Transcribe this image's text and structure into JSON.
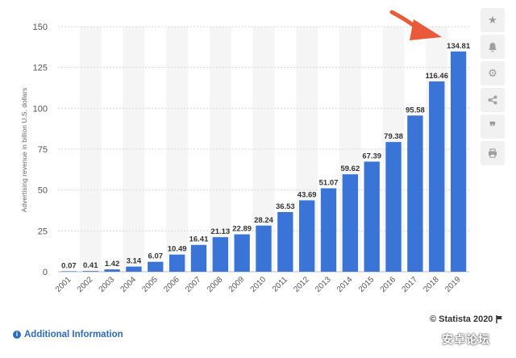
{
  "chart_data": {
    "type": "bar",
    "ylabel": "Advertising revenue in billion U.S. dollars",
    "categories": [
      "2001",
      "2002",
      "2003",
      "2004",
      "2005",
      "2006",
      "2007",
      "2008",
      "2009",
      "2010",
      "2011",
      "2012",
      "2013",
      "2014",
      "2015",
      "2016",
      "2017",
      "2018",
      "2019"
    ],
    "values": [
      0.07,
      0.41,
      1.42,
      3.14,
      6.07,
      10.49,
      16.41,
      21.13,
      22.89,
      28.24,
      36.53,
      43.69,
      51.07,
      59.62,
      67.39,
      79.38,
      95.58,
      116.46,
      134.81
    ],
    "value_labels": [
      "0.07",
      "0.41",
      "1.42",
      "3.14",
      "6.07",
      "10.49",
      "16.41",
      "21.13",
      "22.89",
      "28.24",
      "36.53",
      "43.69",
      "51.07",
      "59.62",
      "67.39",
      "79.38",
      "95.58",
      "116.46",
      "134.81"
    ],
    "yticks": [
      0,
      25,
      50,
      75,
      100,
      125,
      150
    ],
    "ylim": [
      0,
      150
    ],
    "bar_color": "#3a74d6",
    "grid": true
  },
  "annotation": {
    "arrow_color": "#ea5a3a"
  },
  "footer": {
    "info_label": "Additional Information",
    "credit": "© Statista 2020",
    "watermark": "安卓论坛"
  },
  "sidebar": {
    "icons": [
      "star-icon",
      "bell-icon",
      "gear-icon",
      "share-icon",
      "quote-icon",
      "print-icon"
    ]
  }
}
